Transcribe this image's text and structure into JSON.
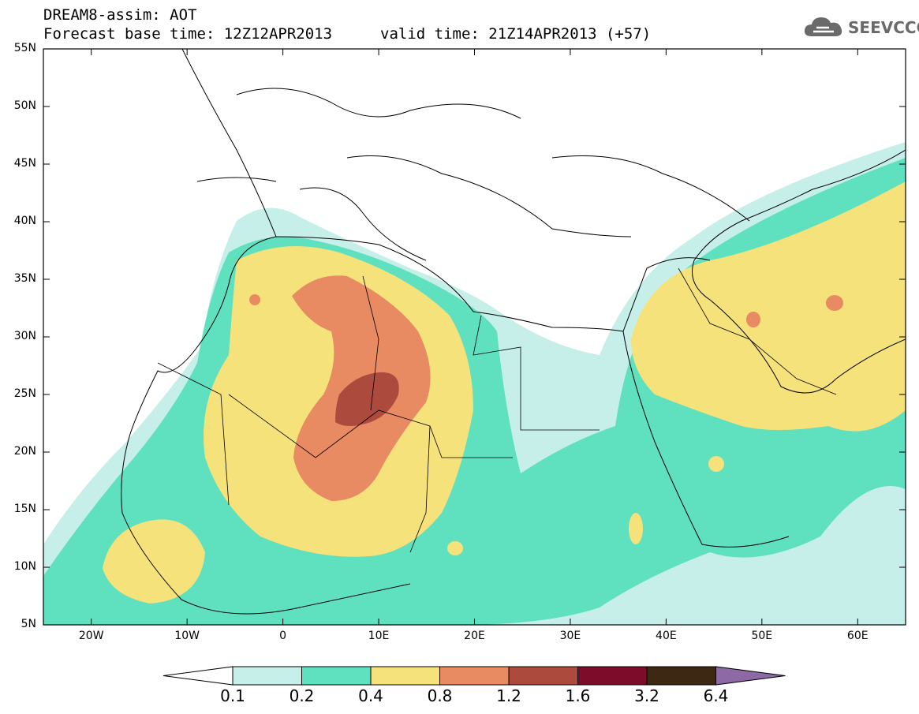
{
  "title_line1": "DREAM8-assim: AOT",
  "title_line2": "Forecast base time: 12Z12APR2013",
  "valid_time": "valid time: 21Z14APR2013 (+57)",
  "logo": {
    "text": "SEEVCCC",
    "icon": "cloud-icon"
  },
  "map": {
    "lat_labels": [
      "55N",
      "50N",
      "45N",
      "40N",
      "35N",
      "30N",
      "25N",
      "20N",
      "15N",
      "10N",
      "5N"
    ],
    "lon_labels": [
      "20W",
      "10W",
      "0",
      "10E",
      "20E",
      "30E",
      "40E",
      "50E",
      "60E"
    ],
    "lat_range": [
      5,
      55
    ],
    "lon_range": [
      -25,
      65
    ]
  },
  "colorbar": {
    "levels": [
      "0.1",
      "0.2",
      "0.4",
      "0.8",
      "1.2",
      "1.6",
      "3.2",
      "6.4"
    ],
    "colors": [
      "#ffffff",
      "#c6efe9",
      "#5fe0bf",
      "#f5e27a",
      "#e88a62",
      "#ad4a3e",
      "#7d0b2a",
      "#3d2814",
      "#8d6aa6"
    ]
  }
}
